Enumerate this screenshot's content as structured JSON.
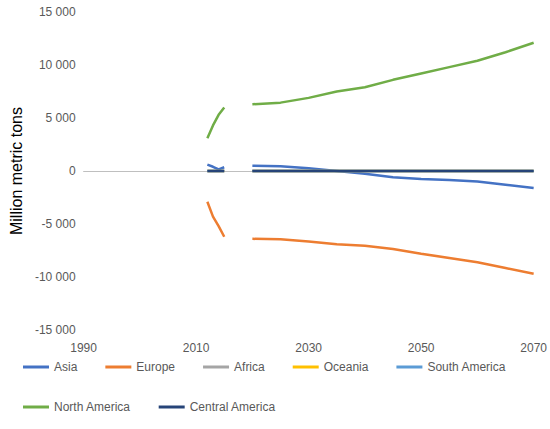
{
  "chart_data": {
    "type": "line",
    "y_label": "Million metric tons",
    "x": [
      2012,
      2013,
      2014,
      2015,
      2017,
      2020,
      2025,
      2030,
      2035,
      2040,
      2045,
      2050,
      2055,
      2060,
      2065,
      2070
    ],
    "series": [
      {
        "name": "Asia",
        "color": "#4472c4",
        "values": [
          600,
          400,
          150,
          350,
          null,
          500,
          450,
          250,
          0,
          -250,
          -600,
          -750,
          -850,
          -1000,
          -1300,
          -1600
        ]
      },
      {
        "name": "Europe",
        "color": "#ed7d31",
        "values": [
          -2900,
          -4300,
          -5200,
          -6200,
          null,
          -6400,
          -6450,
          -6650,
          -6900,
          -7050,
          -7350,
          -7800,
          -8200,
          -8600,
          -9150,
          -9700
        ]
      },
      {
        "name": "Africa",
        "color": "#a5a5a5",
        "values": [
          0,
          0,
          0,
          0,
          null,
          0,
          0,
          0,
          0,
          0,
          0,
          0,
          0,
          0,
          0,
          0
        ]
      },
      {
        "name": "Oceania",
        "color": "#ffc000",
        "values": [
          0,
          0,
          0,
          0,
          null,
          0,
          0,
          0,
          0,
          0,
          0,
          0,
          0,
          0,
          0,
          0
        ]
      },
      {
        "name": "South America",
        "color": "#5b9bd5",
        "values": [
          0,
          0,
          0,
          0,
          null,
          0,
          0,
          0,
          0,
          0,
          0,
          0,
          0,
          0,
          0,
          0
        ]
      },
      {
        "name": "North America",
        "color": "#70ad47",
        "values": [
          3100,
          4300,
          5300,
          6000,
          null,
          6300,
          6450,
          6900,
          7500,
          7900,
          8600,
          9200,
          9800,
          10400,
          11200,
          12100
        ]
      },
      {
        "name": "Central America",
        "color": "#264478",
        "values": [
          0,
          0,
          0,
          0,
          null,
          0,
          0,
          0,
          0,
          0,
          0,
          0,
          0,
          0,
          0,
          0
        ]
      }
    ],
    "xlim": [
      1990,
      2070
    ],
    "xticks": [
      1990,
      2010,
      2030,
      2050,
      2070
    ],
    "ylim": [
      -15000,
      15000
    ],
    "yticks": [
      {
        "value": -15000,
        "label": "-15 000"
      },
      {
        "value": -10000,
        "label": "-10 000"
      },
      {
        "value": -5000,
        "label": "-5 000"
      },
      0,
      {
        "value": 5000,
        "label": "5 000"
      },
      {
        "value": 10000,
        "label": "10 000"
      },
      {
        "value": 15000,
        "label": "15 000"
      }
    ],
    "grid": false,
    "legend": "bottom"
  }
}
